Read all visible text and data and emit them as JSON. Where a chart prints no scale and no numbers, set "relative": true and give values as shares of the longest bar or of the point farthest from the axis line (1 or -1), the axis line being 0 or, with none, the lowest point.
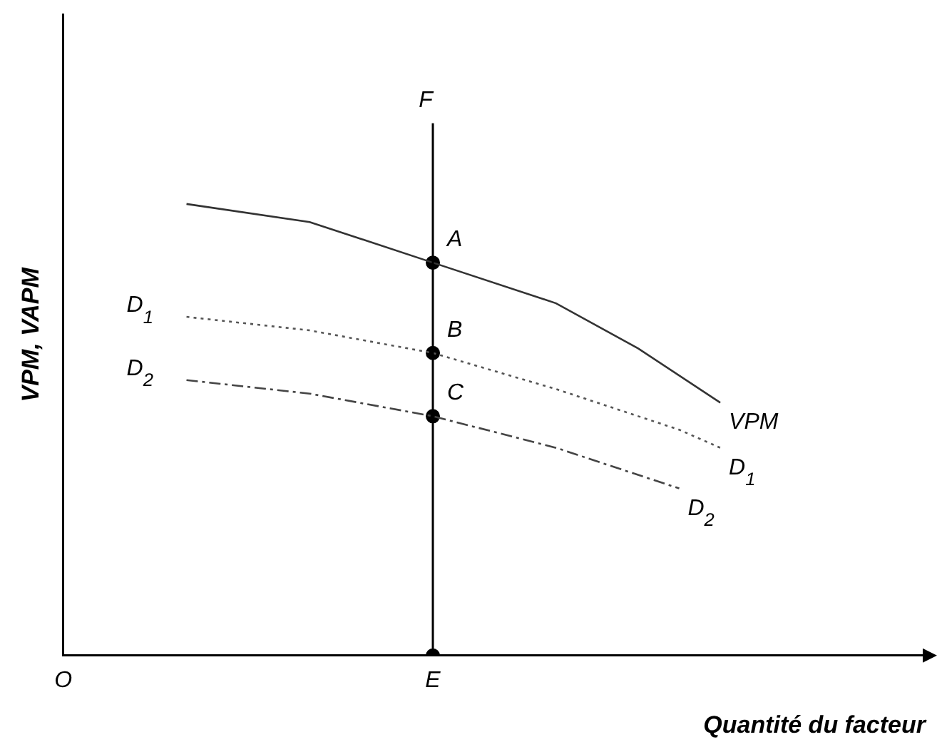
{
  "chart_data": {
    "type": "line",
    "relative": true,
    "xlabel": "Quantité du facteur",
    "ylabel": "VPM, VAPM",
    "categories": [
      "O",
      null,
      null,
      null,
      null,
      null,
      null,
      null,
      null,
      "E",
      null,
      null,
      null,
      null,
      null,
      null,
      null,
      null,
      null,
      null,
      null,
      null
    ],
    "series": [
      {
        "name": "VPM",
        "color": "#333333",
        "line_style": "solid",
        "values": [
          null,
          null,
          null,
          1.0,
          null,
          null,
          0.96,
          null,
          null,
          0.87,
          null,
          null,
          0.78,
          null,
          0.68,
          null,
          0.56,
          null,
          null,
          null,
          null,
          null
        ]
      },
      {
        "name": "D$_{1}$",
        "color": "#555555",
        "line_style": "dotted",
        "values": [
          null,
          null,
          null,
          0.75,
          null,
          null,
          0.72,
          null,
          null,
          0.67,
          null,
          null,
          0.59,
          null,
          null,
          0.5,
          0.46,
          null,
          null,
          null,
          null,
          null
        ]
      },
      {
        "name": "D$_{2}$",
        "color": "#444444",
        "line_style": "dashed",
        "values": [
          null,
          null,
          null,
          0.61,
          null,
          null,
          0.58,
          null,
          null,
          0.53,
          null,
          null,
          0.46,
          null,
          null,
          0.37,
          null,
          null,
          null,
          null,
          null,
          null
        ]
      },
      {
        "type": "scatter",
        "color": "#000000",
        "marker": "circle",
        "x": [
          "E",
          "E",
          "E",
          "E"
        ],
        "values": [
          0.87,
          0.67,
          0.53,
          0
        ]
      }
    ],
    "ref_lines": [
      {
        "axis": "x",
        "value": "E",
        "label": "F",
        "color": "#000000"
      }
    ],
    "annotations": [
      {
        "text": "A",
        "x": "E",
        "y": 0.87
      },
      {
        "text": "B",
        "x": "E",
        "y": 0.67
      },
      {
        "text": "C",
        "x": "E",
        "y": 0.53
      },
      "D$_{1}$",
      "D$_{2}$"
    ],
    "marker": "none",
    "legend": false,
    "grid": false
  }
}
